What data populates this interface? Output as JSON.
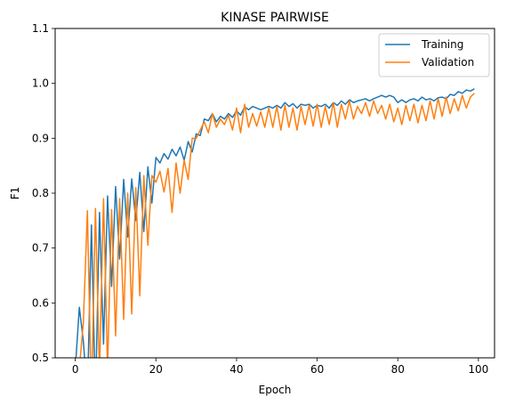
{
  "chart_data": {
    "type": "line",
    "title": "KINASE PAIRWISE",
    "xlabel": "Epoch",
    "ylabel": "F1",
    "xlim": [
      -5,
      104
    ],
    "ylim": [
      0.5,
      1.1
    ],
    "xticks": [
      0,
      20,
      40,
      60,
      80,
      100
    ],
    "yticks": [
      0.5,
      0.6,
      0.7,
      0.8,
      0.9,
      1.0,
      1.1
    ],
    "xtick_labels": [
      "0",
      "20",
      "40",
      "60",
      "80",
      "100"
    ],
    "ytick_labels": [
      "0.5",
      "0.6",
      "0.7",
      "0.8",
      "0.9",
      "1.0",
      "1.1"
    ],
    "grid": false,
    "legend_position": "top-right",
    "series": [
      {
        "name": "Training",
        "color": "#1f77b4",
        "values": [
          0.48,
          0.592,
          0.53,
          0.43,
          0.742,
          0.42,
          0.765,
          0.525,
          0.795,
          0.63,
          0.812,
          0.68,
          0.825,
          0.72,
          0.826,
          0.75,
          0.838,
          0.73,
          0.848,
          0.782,
          0.865,
          0.855,
          0.872,
          0.862,
          0.88,
          0.868,
          0.884,
          0.86,
          0.894,
          0.875,
          0.908,
          0.905,
          0.935,
          0.932,
          0.945,
          0.93,
          0.94,
          0.935,
          0.945,
          0.938,
          0.95,
          0.942,
          0.957,
          0.952,
          0.958,
          0.955,
          0.952,
          0.955,
          0.958,
          0.955,
          0.96,
          0.955,
          0.965,
          0.958,
          0.963,
          0.955,
          0.962,
          0.96,
          0.962,
          0.955,
          0.96,
          0.958,
          0.962,
          0.955,
          0.965,
          0.96,
          0.968,
          0.962,
          0.97,
          0.965,
          0.968,
          0.97,
          0.972,
          0.968,
          0.972,
          0.975,
          0.978,
          0.975,
          0.978,
          0.975,
          0.965,
          0.97,
          0.965,
          0.97,
          0.972,
          0.968,
          0.975,
          0.97,
          0.972,
          0.968,
          0.974,
          0.975,
          0.972,
          0.98,
          0.978,
          0.985,
          0.982,
          0.988,
          0.986,
          0.99
        ]
      },
      {
        "name": "Validation",
        "color": "#ff7f0e",
        "values": [
          0.46,
          0.48,
          0.565,
          0.768,
          0.42,
          0.772,
          0.47,
          0.79,
          0.48,
          0.77,
          0.54,
          0.79,
          0.57,
          0.8,
          0.58,
          0.81,
          0.613,
          0.832,
          0.705,
          0.832,
          0.82,
          0.84,
          0.802,
          0.845,
          0.765,
          0.855,
          0.8,
          0.86,
          0.825,
          0.9,
          0.9,
          0.915,
          0.93,
          0.91,
          0.945,
          0.92,
          0.935,
          0.925,
          0.942,
          0.915,
          0.955,
          0.91,
          0.962,
          0.92,
          0.945,
          0.922,
          0.948,
          0.92,
          0.955,
          0.92,
          0.958,
          0.915,
          0.96,
          0.92,
          0.955,
          0.915,
          0.958,
          0.925,
          0.96,
          0.922,
          0.962,
          0.92,
          0.958,
          0.925,
          0.965,
          0.92,
          0.962,
          0.935,
          0.968,
          0.935,
          0.958,
          0.945,
          0.965,
          0.94,
          0.968,
          0.945,
          0.96,
          0.935,
          0.962,
          0.93,
          0.955,
          0.925,
          0.96,
          0.932,
          0.962,
          0.928,
          0.96,
          0.932,
          0.968,
          0.935,
          0.972,
          0.94,
          0.975,
          0.945,
          0.972,
          0.95,
          0.978,
          0.955,
          0.975,
          0.982
        ]
      }
    ]
  }
}
